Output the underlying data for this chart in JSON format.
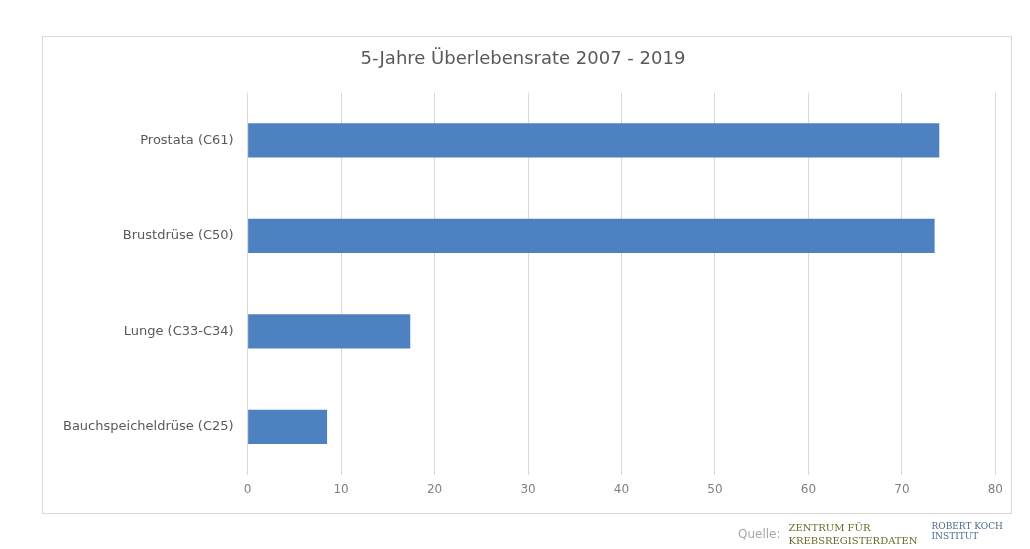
{
  "chart_data": {
    "type": "bar",
    "orientation": "horizontal",
    "title": "5-Jahre Überlebensrate 2007 - 2019",
    "categories": [
      "Prostata (C61)",
      "Brustdrüse (C50)",
      "Lunge (C33-C34)",
      "Bauchspeicheldrüse (C25)"
    ],
    "values": [
      74.0,
      73.5,
      17.4,
      8.5
    ],
    "color": "#4e81c0",
    "xlim": [
      0,
      80
    ],
    "xticks": [
      0,
      10,
      20,
      30,
      40,
      50,
      60,
      70,
      80
    ],
    "grid": "x",
    "legend": false,
    "annotations": [
      "Quelle:",
      "ZENTRUM FÜR KREBSREGISTERDATEN",
      "ROBERT KOCH INSTITUT"
    ]
  }
}
